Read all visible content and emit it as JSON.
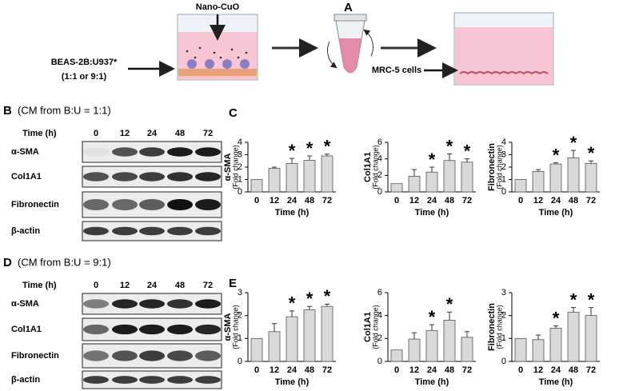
{
  "figure": {
    "panel_labels": {
      "a": "A",
      "b": "B",
      "c": "C",
      "d": "D",
      "e": "E"
    },
    "schematic": {
      "treatment": "Nano-CuO",
      "cells": "BEAS-2B:U937*",
      "ratio": "(1:1 or 9:1)",
      "recipient": "MRC-5 cells"
    },
    "blots": [
      {
        "caption": "(CM from B:U = 1:1)",
        "time_label": "Time (h)",
        "lanes": [
          "0",
          "12",
          "24",
          "48",
          "72"
        ],
        "proteins": [
          "α-SMA",
          "Col1A1",
          "Fibronectin",
          "β-actin"
        ]
      },
      {
        "caption": "(CM from B:U = 9:1)",
        "time_label": "Time (h)",
        "lanes": [
          "0",
          "12",
          "24",
          "48",
          "72"
        ],
        "proteins": [
          "α-SMA",
          "Col1A1",
          "Fibronectin",
          "β-actin"
        ]
      }
    ]
  },
  "chart_data": [
    {
      "type": "bar",
      "ylabel": "α-SMA",
      "ylabel_sub": "(Fold change)",
      "xlabel": "Time (h)",
      "categories": [
        "0",
        "12",
        "24",
        "48",
        "72"
      ],
      "values": [
        1.0,
        1.9,
        2.3,
        2.55,
        2.9
      ],
      "errors": [
        null,
        0.1,
        0.4,
        0.35,
        0.15
      ],
      "annotations": [
        null,
        null,
        "*",
        "*",
        "*"
      ],
      "color": "#d9d9d9",
      "ylim": [
        0,
        4
      ],
      "yticks": [
        0,
        1,
        2,
        3,
        4
      ]
    },
    {
      "type": "bar",
      "ylabel": "Col1A1",
      "ylabel_sub": "(Fold change)",
      "xlabel": "Time (h)",
      "categories": [
        "0",
        "12",
        "24",
        "48",
        "72"
      ],
      "values": [
        1.0,
        1.9,
        2.4,
        3.8,
        3.6
      ],
      "errors": [
        null,
        0.8,
        0.6,
        0.8,
        0.4
      ],
      "annotations": [
        null,
        null,
        "*",
        "*",
        "*"
      ],
      "color": "#d9d9d9",
      "ylim": [
        0,
        6
      ],
      "yticks": [
        0,
        2,
        4,
        6
      ]
    },
    {
      "type": "bar",
      "ylabel": "Fibronectin",
      "ylabel_sub": "(Fold change)",
      "xlabel": "Time (h)",
      "categories": [
        "0",
        "12",
        "24",
        "48",
        "72"
      ],
      "values": [
        1.0,
        1.65,
        2.25,
        2.75,
        2.3
      ],
      "errors": [
        null,
        0.15,
        0.1,
        0.6,
        0.2
      ],
      "annotations": [
        null,
        null,
        "*",
        "*",
        "*"
      ],
      "color": "#d9d9d9",
      "ylim": [
        0,
        4
      ],
      "yticks": [
        0,
        1,
        2,
        3,
        4
      ]
    },
    {
      "type": "bar",
      "ylabel": "α-SMA",
      "ylabel_sub": "(Fold change)",
      "xlabel": "Time (h)",
      "categories": [
        "0",
        "12",
        "24",
        "48",
        "72"
      ],
      "values": [
        1.0,
        1.3,
        1.95,
        2.25,
        2.4
      ],
      "errors": [
        null,
        0.35,
        0.25,
        0.15,
        0.1
      ],
      "annotations": [
        null,
        null,
        "*",
        "*",
        "*"
      ],
      "color": "#d9d9d9",
      "ylim": [
        0,
        3
      ],
      "yticks": [
        0,
        1,
        2,
        3
      ]
    },
    {
      "type": "bar",
      "ylabel": "Col1A1",
      "ylabel_sub": "(Fold change)",
      "xlabel": "Time (h)",
      "categories": [
        "0",
        "12",
        "24",
        "48",
        "72"
      ],
      "values": [
        1.0,
        1.95,
        2.7,
        3.6,
        2.1
      ],
      "errors": [
        null,
        0.55,
        0.5,
        0.7,
        0.5
      ],
      "annotations": [
        null,
        null,
        "*",
        "*",
        null
      ],
      "color": "#d9d9d9",
      "ylim": [
        0,
        6
      ],
      "yticks": [
        0,
        2,
        4,
        6
      ]
    },
    {
      "type": "bar",
      "ylabel": "Fibronectin",
      "ylabel_sub": "(Fold change)",
      "xlabel": "Time (h)",
      "categories": [
        "0",
        "12",
        "24",
        "48",
        "72"
      ],
      "values": [
        1.0,
        0.95,
        1.45,
        2.15,
        2.0
      ],
      "errors": [
        null,
        0.2,
        0.1,
        0.2,
        0.35
      ],
      "annotations": [
        null,
        null,
        "*",
        "*",
        "*"
      ],
      "color": "#d9d9d9",
      "ylim": [
        0,
        3
      ],
      "yticks": [
        0,
        1,
        2,
        3
      ]
    }
  ]
}
